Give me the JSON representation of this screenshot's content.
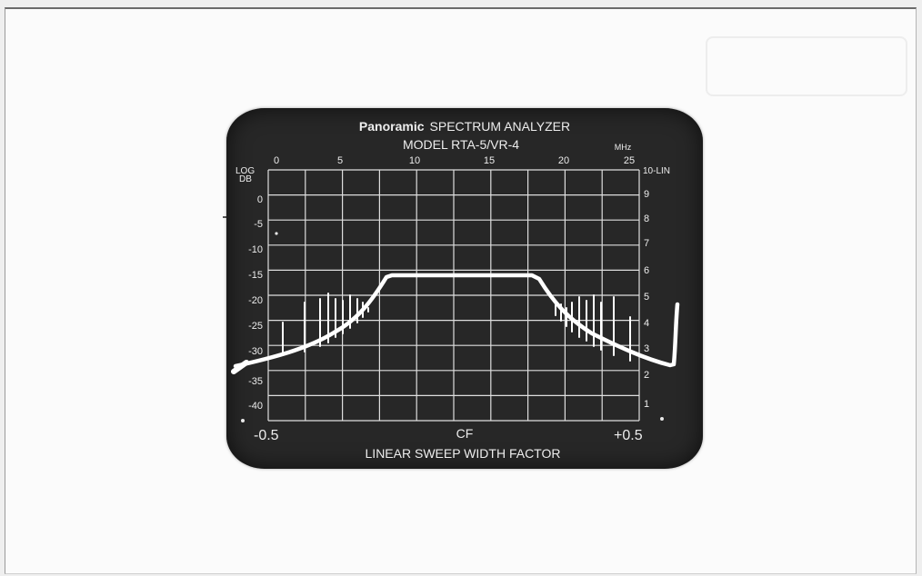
{
  "photo": {
    "subject": "oscilloscope-crt-spectrum-display"
  },
  "panel": {
    "brand": "Panoramic",
    "title": "SPECTRUM ANALYZER",
    "model": "MODEL RTA-5/VR-4",
    "freq_unit": "MHz",
    "freq_ticks": [
      "0",
      "5",
      "10",
      "15",
      "20",
      "25"
    ],
    "left_scale_title_1": "LOG",
    "left_scale_title_2": "DB",
    "db_ticks": [
      "0",
      "-5",
      "-10",
      "-15",
      "-20",
      "-25",
      "-30",
      "-35",
      "-40"
    ],
    "right_scale_title": "10-LIN",
    "lin_ticks": [
      "9",
      "8",
      "7",
      "6",
      "5",
      "4",
      "3",
      "2",
      "1"
    ],
    "bottom_left": "-0.5",
    "bottom_center": "CF",
    "bottom_right": "+0.5",
    "bottom_title": "LINEAR SWEEP WIDTH FACTOR"
  },
  "colors": {
    "screen": "#272727",
    "graticule": "#dedede",
    "trace": "#ffffff"
  }
}
